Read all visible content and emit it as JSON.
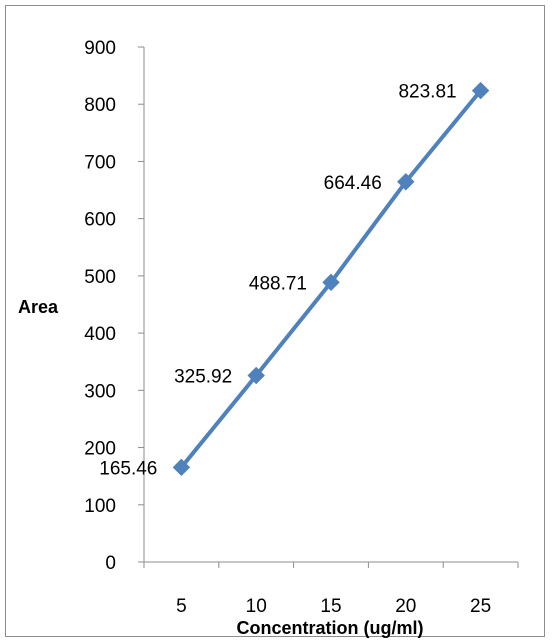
{
  "chart_data": {
    "type": "line",
    "title": "",
    "xlabel": "Concentration (ug/ml)",
    "ylabel": "Area",
    "categories": [
      "5",
      "10",
      "15",
      "20",
      "25"
    ],
    "ylim": [
      0,
      900
    ],
    "yticks": [
      0,
      100,
      200,
      300,
      400,
      500,
      600,
      700,
      800,
      900
    ],
    "series": [
      {
        "values": [
          165.46,
          325.92,
          488.71,
          664.46,
          823.81
        ],
        "data_labels": [
          "165.46",
          "325.92",
          "488.71",
          "664.46",
          "823.81"
        ],
        "color": "#4F81BD",
        "marker": "diamond"
      }
    ],
    "grid": false,
    "legend": "none"
  }
}
